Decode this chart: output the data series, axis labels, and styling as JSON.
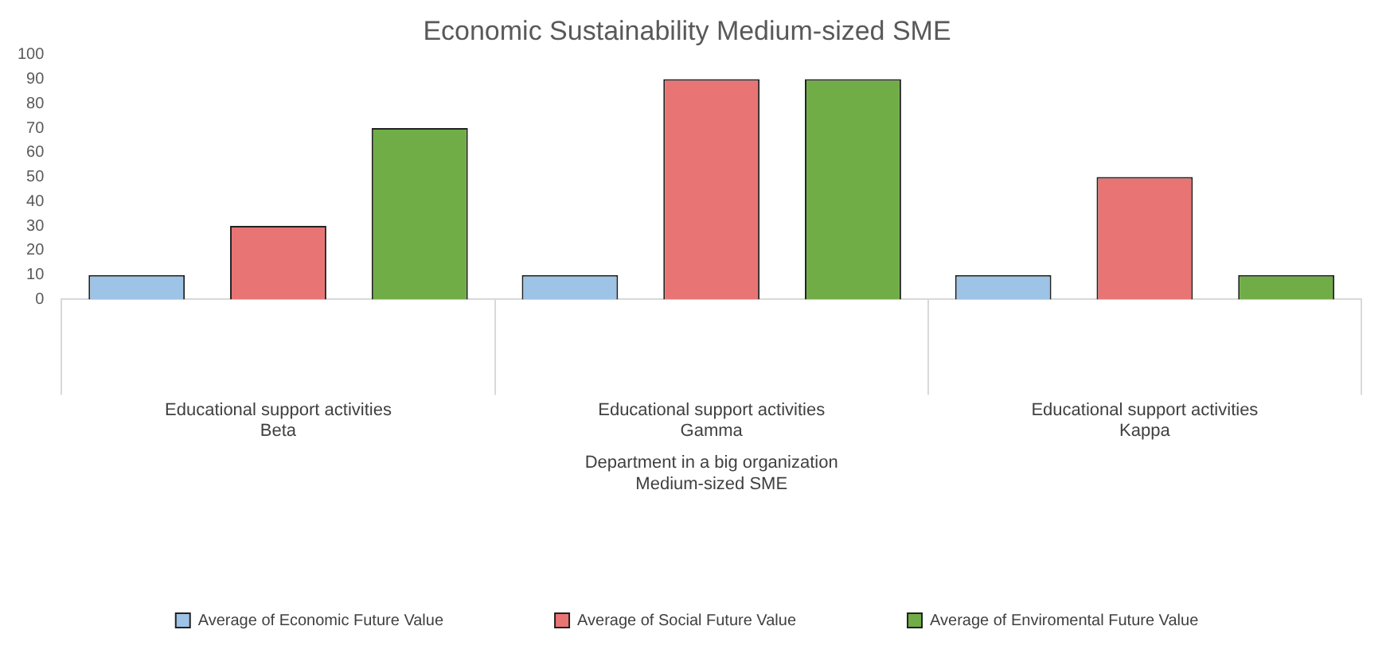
{
  "chart_data": {
    "type": "bar",
    "title": "Economic Sustainability Medium-sized SME",
    "categories": [
      "Educational support activities\nBeta",
      "Educational support activities\nGamma",
      "Educational support activities\nKappa"
    ],
    "xlabel": "Department in a big organization\nMedium-sized SME",
    "series": [
      {
        "name": "Average of Economic Future Value",
        "color": "#9dc3e6",
        "values": [
          10,
          10,
          10
        ]
      },
      {
        "name": "Average of Social Future Value",
        "color": "#e87474",
        "values": [
          30,
          90,
          50
        ]
      },
      {
        "name": "Average of Enviromental Future Value",
        "color": "#70ad47",
        "values": [
          70,
          90,
          10
        ]
      }
    ],
    "ylim": [
      0,
      100
    ],
    "yticks": [
      0,
      10,
      20,
      30,
      40,
      50,
      60,
      70,
      80,
      90,
      100
    ],
    "grid": false,
    "legend": "bottom"
  }
}
